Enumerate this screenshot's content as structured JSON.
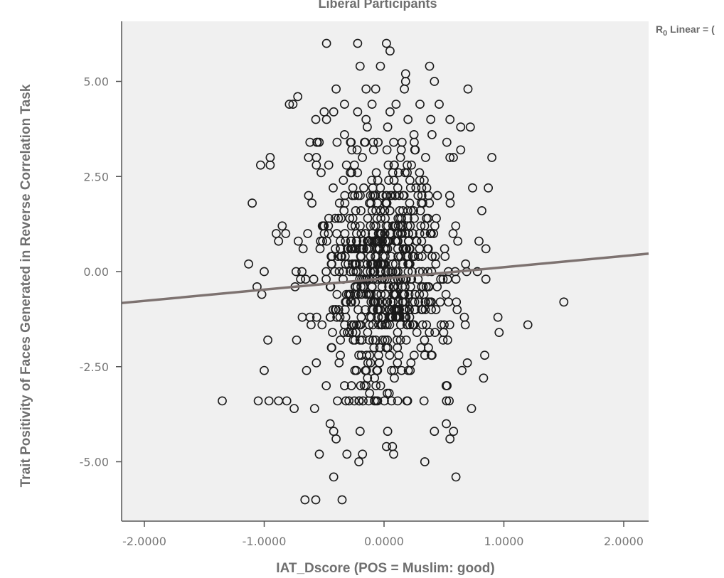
{
  "chart_data": {
    "type": "scatter",
    "title": "Liberal Participants",
    "xlabel": "IAT_Dscore (POS = Muslim: good)",
    "ylabel": "Trait Positivity of Faces Generated in Reverse Correlation Task",
    "xlim": [
      -2.2,
      2.2
    ],
    "ylim": [
      -6.6,
      6.6
    ],
    "x_ticks": [
      {
        "value": -2.0,
        "label": "-2.0000"
      },
      {
        "value": -1.0,
        "label": "-1.0000"
      },
      {
        "value": 0.0,
        "label": "0.0000"
      },
      {
        "value": 1.0,
        "label": "1.0000"
      },
      {
        "value": 2.0,
        "label": "2.0000"
      }
    ],
    "y_ticks": [
      {
        "value": 5.0,
        "label": "5.00"
      },
      {
        "value": 2.5,
        "label": "2.50"
      },
      {
        "value": 0.0,
        "label": "0.00"
      },
      {
        "value": -2.5,
        "label": "-2.50"
      },
      {
        "value": -5.0,
        "label": "-5.00"
      }
    ],
    "grid": false,
    "plot_background": "#f0f0f0",
    "point_color": "#1a1a1a",
    "fit_line": {
      "type": "linear",
      "intercept": -0.18,
      "slope": 0.295,
      "color": "#7d7270"
    },
    "legend": {
      "label_main": "R",
      "label_sub": "0",
      "label_rest": " Linear = (",
      "placement": "top-right"
    },
    "outliers": [
      {
        "x": -0.48,
        "y": 6.0
      },
      {
        "x": -0.22,
        "y": 6.0
      },
      {
        "x": 0.02,
        "y": 6.0
      },
      {
        "x": 0.05,
        "y": 5.8
      },
      {
        "x": -0.2,
        "y": 5.4
      },
      {
        "x": -0.03,
        "y": 5.4
      },
      {
        "x": 0.38,
        "y": 5.4
      },
      {
        "x": 0.18,
        "y": 5.2
      },
      {
        "x": 0.18,
        "y": 5.0
      },
      {
        "x": 0.42,
        "y": 5.0
      },
      {
        "x": -0.4,
        "y": 4.8
      },
      {
        "x": -0.15,
        "y": 4.8
      },
      {
        "x": -0.07,
        "y": 4.8
      },
      {
        "x": 0.17,
        "y": 4.8
      },
      {
        "x": 0.7,
        "y": 4.8
      },
      {
        "x": -0.72,
        "y": 4.6
      },
      {
        "x": -0.76,
        "y": 4.4
      },
      {
        "x": -0.79,
        "y": 4.4
      },
      {
        "x": -0.33,
        "y": 4.4
      },
      {
        "x": -0.1,
        "y": 4.4
      },
      {
        "x": 0.1,
        "y": 4.4
      },
      {
        "x": 0.3,
        "y": 4.4
      },
      {
        "x": 0.46,
        "y": 4.4
      },
      {
        "x": -0.5,
        "y": 4.2
      },
      {
        "x": -0.42,
        "y": 4.2
      },
      {
        "x": -0.22,
        "y": 4.2
      },
      {
        "x": 0.05,
        "y": 4.2
      },
      {
        "x": -0.57,
        "y": 4.0
      },
      {
        "x": -0.48,
        "y": 4.0
      },
      {
        "x": -0.15,
        "y": 4.0
      },
      {
        "x": 0.2,
        "y": 4.0
      },
      {
        "x": 0.39,
        "y": 4.0
      },
      {
        "x": 0.55,
        "y": 4.0
      },
      {
        "x": -0.14,
        "y": 3.8
      },
      {
        "x": 0.03,
        "y": 3.8
      },
      {
        "x": 0.64,
        "y": 3.8
      },
      {
        "x": 0.72,
        "y": 3.8
      },
      {
        "x": 0.9,
        "y": 3.0
      },
      {
        "x": 0.87,
        "y": 2.2
      },
      {
        "x": -0.95,
        "y": 3.0
      },
      {
        "x": -0.95,
        "y": 2.8
      },
      {
        "x": -1.03,
        "y": 2.8
      },
      {
        "x": -1.1,
        "y": 1.8
      },
      {
        "x": -1.13,
        "y": 0.2
      },
      {
        "x": -1.0,
        "y": 0.0
      },
      {
        "x": -1.06,
        "y": -0.4
      },
      {
        "x": -1.02,
        "y": -0.6
      },
      {
        "x": -0.97,
        "y": -1.8
      },
      {
        "x": -1.0,
        "y": -2.6
      },
      {
        "x": -1.35,
        "y": -3.4
      },
      {
        "x": -1.05,
        "y": -3.4
      },
      {
        "x": -0.96,
        "y": -3.4
      },
      {
        "x": 0.95,
        "y": -1.2
      },
      {
        "x": 0.96,
        "y": -1.6
      },
      {
        "x": 1.2,
        "y": -1.4
      },
      {
        "x": 1.5,
        "y": -0.8
      },
      {
        "x": 0.84,
        "y": -2.2
      },
      {
        "x": 0.83,
        "y": -2.8
      },
      {
        "x": 0.73,
        "y": -3.6
      },
      {
        "x": -0.75,
        "y": -3.6
      },
      {
        "x": -0.58,
        "y": -3.6
      },
      {
        "x": -0.45,
        "y": -4.0
      },
      {
        "x": -0.42,
        "y": -4.2
      },
      {
        "x": -0.4,
        "y": -4.4
      },
      {
        "x": -0.2,
        "y": -4.2
      },
      {
        "x": 0.03,
        "y": -4.2
      },
      {
        "x": 0.42,
        "y": -4.2
      },
      {
        "x": 0.52,
        "y": -4.0
      },
      {
        "x": 0.58,
        "y": -4.2
      },
      {
        "x": 0.55,
        "y": -4.4
      },
      {
        "x": 0.02,
        "y": -4.6
      },
      {
        "x": 0.07,
        "y": -4.6
      },
      {
        "x": 0.08,
        "y": -4.8
      },
      {
        "x": -0.54,
        "y": -4.8
      },
      {
        "x": -0.31,
        "y": -4.8
      },
      {
        "x": -0.18,
        "y": -4.8
      },
      {
        "x": -0.21,
        "y": -5.0
      },
      {
        "x": 0.34,
        "y": -5.0
      },
      {
        "x": -0.42,
        "y": -5.4
      },
      {
        "x": 0.6,
        "y": -5.4
      },
      {
        "x": -0.66,
        "y": -6.0
      },
      {
        "x": -0.57,
        "y": -6.0
      },
      {
        "x": -0.35,
        "y": -6.0
      },
      {
        "x": -0.33,
        "y": 3.6
      },
      {
        "x": 0.4,
        "y": 3.6
      },
      {
        "x": 0.25,
        "y": 3.6
      },
      {
        "x": -0.05,
        "y": 3.4
      },
      {
        "x": 0.15,
        "y": 3.4
      },
      {
        "x": -0.56,
        "y": 3.4
      },
      {
        "x": -0.63,
        "y": 3.0
      },
      {
        "x": 0.55,
        "y": 3.0
      },
      {
        "x": 0.64,
        "y": 3.2
      },
      {
        "x": -0.85,
        "y": 1.2
      },
      {
        "x": -0.82,
        "y": 1.0
      },
      {
        "x": -0.9,
        "y": 1.0
      },
      {
        "x": -0.88,
        "y": 0.8
      }
    ],
    "cloud": {
      "n": 720,
      "x_mean": 0.0,
      "x_sd": 0.3,
      "x_range": [
        -0.88,
        0.85
      ],
      "y_mean": 0.0,
      "y_sd": 1.6,
      "y_range": [
        -3.4,
        3.4
      ],
      "y_step": 0.2,
      "seed": 7
    }
  }
}
